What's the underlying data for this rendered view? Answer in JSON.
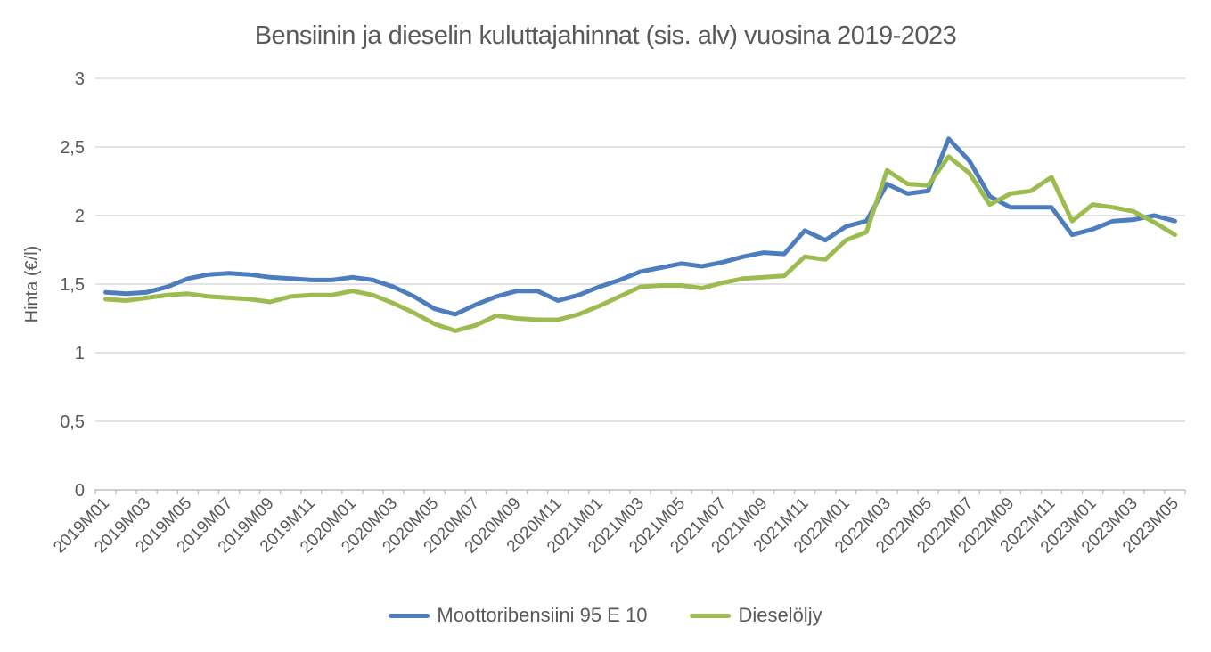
{
  "chart_data": {
    "type": "line",
    "title": "Bensiinin ja dieselin kuluttajahinnat (sis. alv) vuosina 2019-2023",
    "xlabel": "",
    "ylabel": "Hinta (€/l)",
    "ylim": [
      0,
      3
    ],
    "y_ticks": [
      0,
      0.5,
      1,
      1.5,
      2,
      2.5,
      3
    ],
    "y_tick_labels": [
      "0",
      "0,5",
      "1",
      "1,5",
      "2",
      "2,5",
      "3"
    ],
    "x_label_interval": 2,
    "grid": "horizontal",
    "legend_position": "bottom",
    "categories": [
      "2019M01",
      "2019M02",
      "2019M03",
      "2019M04",
      "2019M05",
      "2019M06",
      "2019M07",
      "2019M08",
      "2019M09",
      "2019M10",
      "2019M11",
      "2019M12",
      "2020M01",
      "2020M02",
      "2020M03",
      "2020M04",
      "2020M05",
      "2020M06",
      "2020M07",
      "2020M08",
      "2020M09",
      "2020M10",
      "2020M11",
      "2020M12",
      "2021M01",
      "2021M02",
      "2021M03",
      "2021M04",
      "2021M05",
      "2021M06",
      "2021M07",
      "2021M08",
      "2021M09",
      "2021M10",
      "2021M11",
      "2021M12",
      "2022M01",
      "2022M02",
      "2022M03",
      "2022M04",
      "2022M05",
      "2022M06",
      "2022M07",
      "2022M08",
      "2022M09",
      "2022M10",
      "2022M11",
      "2022M12",
      "2023M01",
      "2023M02",
      "2023M03",
      "2023M04",
      "2023M05"
    ],
    "series": [
      {
        "name": "Moottoribensiini 95 E 10",
        "color": "#4E7DBE",
        "values": [
          1.44,
          1.43,
          1.44,
          1.48,
          1.54,
          1.57,
          1.58,
          1.57,
          1.55,
          1.54,
          1.53,
          1.53,
          1.55,
          1.53,
          1.48,
          1.41,
          1.32,
          1.28,
          1.35,
          1.41,
          1.45,
          1.45,
          1.38,
          1.42,
          1.48,
          1.53,
          1.59,
          1.62,
          1.65,
          1.63,
          1.66,
          1.7,
          1.73,
          1.72,
          1.89,
          1.82,
          1.92,
          1.96,
          2.23,
          2.16,
          2.18,
          2.56,
          2.4,
          2.14,
          2.06,
          2.06,
          2.06,
          1.86,
          1.9,
          1.96,
          1.97,
          2.0,
          1.96
        ]
      },
      {
        "name": "Dieselöljy",
        "color": "#9DBC50",
        "values": [
          1.39,
          1.38,
          1.4,
          1.42,
          1.43,
          1.41,
          1.4,
          1.39,
          1.37,
          1.41,
          1.42,
          1.42,
          1.45,
          1.42,
          1.36,
          1.29,
          1.21,
          1.16,
          1.2,
          1.27,
          1.25,
          1.24,
          1.24,
          1.28,
          1.34,
          1.41,
          1.48,
          1.49,
          1.49,
          1.47,
          1.51,
          1.54,
          1.55,
          1.56,
          1.7,
          1.68,
          1.82,
          1.88,
          2.33,
          2.23,
          2.22,
          2.43,
          2.31,
          2.08,
          2.16,
          2.18,
          2.28,
          1.96,
          2.08,
          2.06,
          2.03,
          1.95,
          1.86
        ]
      }
    ]
  },
  "colors": {
    "text": "#595959",
    "grid": "#D9D9D9",
    "axis": "#BFBFBF",
    "background": "#FFFFFF"
  }
}
